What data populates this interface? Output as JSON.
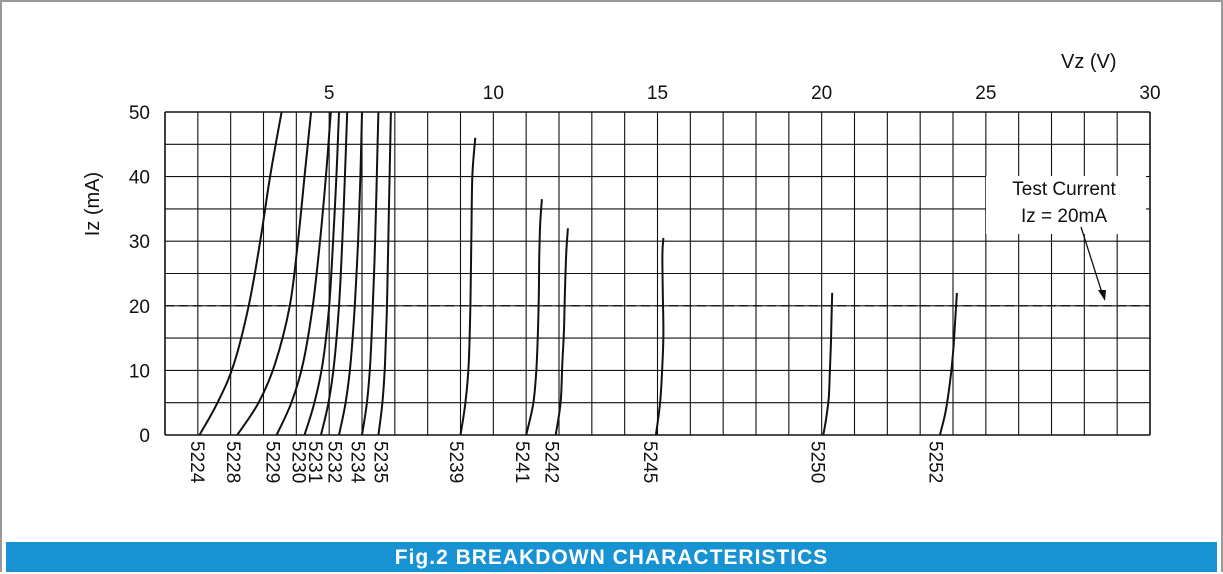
{
  "caption": "Fig.2 BREAKDOWN CHARACTERISTICS",
  "colors": {
    "caption_bar": "#1792d3",
    "curve": "#111111",
    "grid": "#111111"
  },
  "chart_data": {
    "type": "line",
    "xlabel": "Vz (V)",
    "ylabel": "Iz (mA)",
    "xlim": [
      0,
      30
    ],
    "ylim": [
      0,
      50
    ],
    "x_ticks": [
      "5",
      "10",
      "15",
      "20",
      "25",
      "30"
    ],
    "y_ticks": [
      "0",
      "10",
      "20",
      "30",
      "40",
      "50"
    ],
    "x_axis_position": "top",
    "grid": true,
    "annotation": {
      "line1": "Test Current",
      "line2": "Iz = 20mA",
      "value_mA": 20
    },
    "series": [
      {
        "name": "5224",
        "x": [
          1.05,
          1.6,
          2.1,
          2.55,
          2.9,
          3.2,
          3.55
        ],
        "y": [
          0,
          5,
          11,
          20,
          30,
          40,
          50
        ]
      },
      {
        "name": "5228",
        "x": [
          2.2,
          2.85,
          3.35,
          3.8,
          4.05,
          4.25,
          4.45
        ],
        "y": [
          0,
          5,
          11,
          20,
          30,
          40,
          50
        ]
      },
      {
        "name": "5229",
        "x": [
          3.4,
          3.85,
          4.2,
          4.5,
          4.72,
          4.9,
          5.05
        ],
        "y": [
          0,
          5,
          11,
          20,
          30,
          40,
          50
        ]
      },
      {
        "name": "5230",
        "x": [
          4.25,
          4.55,
          4.8,
          5.0,
          5.12,
          5.22,
          5.3
        ],
        "y": [
          0,
          5,
          11,
          20,
          30,
          40,
          50
        ]
      },
      {
        "name": "5231",
        "x": [
          4.75,
          4.98,
          5.15,
          5.3,
          5.4,
          5.48,
          5.55
        ],
        "y": [
          0,
          5,
          11,
          20,
          30,
          40,
          50
        ]
      },
      {
        "name": "5232",
        "x": [
          5.3,
          5.5,
          5.65,
          5.78,
          5.88,
          5.95,
          6.0
        ],
        "y": [
          0,
          5,
          11,
          20,
          30,
          40,
          50
        ]
      },
      {
        "name": "5234",
        "x": [
          6.0,
          6.15,
          6.25,
          6.33,
          6.4,
          6.45,
          6.5
        ],
        "y": [
          0,
          5,
          11,
          20,
          30,
          40,
          50
        ]
      },
      {
        "name": "5235",
        "x": [
          6.5,
          6.62,
          6.7,
          6.76,
          6.8,
          6.84,
          6.88
        ],
        "y": [
          0,
          5,
          11,
          20,
          30,
          40,
          50
        ]
      },
      {
        "name": "5239",
        "x": [
          9.0,
          9.15,
          9.25,
          9.3,
          9.33,
          9.36,
          9.45
        ],
        "y": [
          0,
          5,
          11,
          20,
          30,
          40,
          46
        ]
      },
      {
        "name": "5241",
        "x": [
          11.0,
          11.22,
          11.32,
          11.38,
          11.4,
          11.43,
          11.48
        ],
        "y": [
          0,
          5,
          11,
          20,
          28,
          33,
          36.5
        ]
      },
      {
        "name": "5242",
        "x": [
          11.9,
          12.05,
          12.1,
          12.15,
          12.18,
          12.22,
          12.27
        ],
        "y": [
          0,
          5,
          11,
          16,
          22,
          28,
          32
        ]
      },
      {
        "name": "5245",
        "x": [
          14.95,
          15.08,
          15.15,
          15.18,
          15.16,
          15.15,
          15.18
        ],
        "y": [
          0,
          5,
          11,
          16,
          22,
          28,
          30.5
        ]
      },
      {
        "name": "5250",
        "x": [
          20.05,
          20.15,
          20.22,
          20.25,
          20.28,
          20.3,
          20.32
        ],
        "y": [
          0,
          3,
          6,
          10,
          14,
          18,
          22
        ]
      },
      {
        "name": "5252",
        "x": [
          23.6,
          23.75,
          23.85,
          23.95,
          24.02,
          24.07,
          24.12
        ],
        "y": [
          0,
          3,
          6,
          10,
          14,
          18,
          22
        ]
      }
    ],
    "label_x": [
      1.0,
      2.1,
      3.3,
      4.1,
      4.6,
      5.2,
      5.9,
      6.6,
      8.9,
      10.9,
      11.8,
      14.8,
      19.9,
      23.5
    ]
  }
}
